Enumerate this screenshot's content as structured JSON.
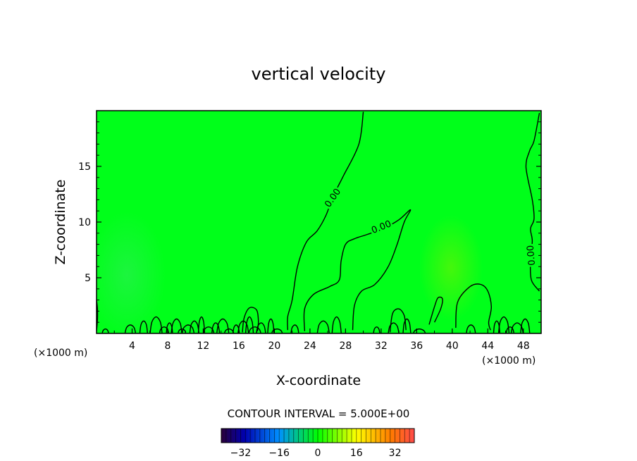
{
  "chart_data": {
    "type": "contour",
    "title": "vertical velocity",
    "xlabel": "X-coordinate",
    "ylabel": "Z-coordinate",
    "x_units": "(×1000 m)",
    "x_units_right": "(×1000 m)",
    "xlim": [
      0,
      50
    ],
    "ylim": [
      0,
      20
    ],
    "xticks": [
      4,
      8,
      12,
      16,
      20,
      24,
      28,
      32,
      36,
      40,
      44,
      48
    ],
    "yticks": [
      5,
      10,
      15
    ],
    "contour_interval_text": "CONTOUR INTERVAL = 5.000E+00",
    "contour_labels": [
      "0.00",
      "0.00",
      "0.00"
    ],
    "colorbar": {
      "ticks": [
        -32,
        -16,
        0,
        16,
        32
      ],
      "range": [
        -40,
        40
      ],
      "colors": [
        "#2a003a",
        "#0000b0",
        "#0090ff",
        "#00ff00",
        "#ffff00",
        "#ff7a00",
        "#ff4a4a"
      ]
    },
    "field_color": "#00ff1a",
    "contours": [
      {
        "level": 0.0,
        "points": [
          [
            21.5,
            0.3
          ],
          [
            21.5,
            1.5
          ],
          [
            22,
            3
          ],
          [
            22.6,
            6
          ],
          [
            23.6,
            8.2
          ],
          [
            24.8,
            9.2
          ],
          [
            25.8,
            10.6
          ],
          [
            26.6,
            12.3
          ],
          [
            27.8,
            14.2
          ],
          [
            29.5,
            17
          ],
          [
            30,
            19.9
          ]
        ]
      },
      {
        "level": 0.0,
        "points": [
          [
            23.4,
            0.2
          ],
          [
            23.4,
            2.2
          ],
          [
            24.4,
            3.5
          ],
          [
            26.2,
            4.2
          ],
          [
            27.3,
            4.8
          ],
          [
            27.5,
            6.5
          ],
          [
            28,
            8
          ],
          [
            29,
            8.5
          ],
          [
            30.5,
            8.9
          ],
          [
            32.2,
            9.4
          ],
          [
            34,
            10.2
          ],
          [
            35.3,
            11.1
          ],
          [
            34.6,
            10
          ],
          [
            33.8,
            8
          ],
          [
            32.8,
            6
          ],
          [
            31.3,
            4.4
          ],
          [
            29.8,
            3.8
          ],
          [
            29,
            2.5
          ],
          [
            28.8,
            0.3
          ]
        ]
      },
      {
        "level": 0.0,
        "points": [
          [
            49.8,
            3.8
          ],
          [
            48.9,
            4.8
          ],
          [
            48.8,
            6.6
          ],
          [
            49,
            8.3
          ],
          [
            48.8,
            9.4
          ],
          [
            49.2,
            10.3
          ],
          [
            49,
            12
          ],
          [
            48.3,
            14.9
          ],
          [
            48.7,
            16.4
          ],
          [
            49.2,
            17.3
          ],
          [
            49.8,
            19.8
          ]
        ]
      },
      {
        "level": 0.0,
        "points": [
          [
            40.4,
            0.5
          ],
          [
            40.6,
            2.8
          ],
          [
            42,
            4.2
          ],
          [
            43.2,
            4.4
          ],
          [
            44,
            3.8
          ],
          [
            44.4,
            2.4
          ],
          [
            44.1,
            1
          ],
          [
            44.3,
            0.3
          ]
        ]
      },
      {
        "level": 5.0,
        "points": [
          [
            37.4,
            0.8
          ],
          [
            38,
            2.4
          ],
          [
            38.4,
            3.2
          ],
          [
            38.9,
            3.1
          ],
          [
            38.7,
            2.2
          ],
          [
            38,
            1
          ]
        ]
      }
    ]
  }
}
